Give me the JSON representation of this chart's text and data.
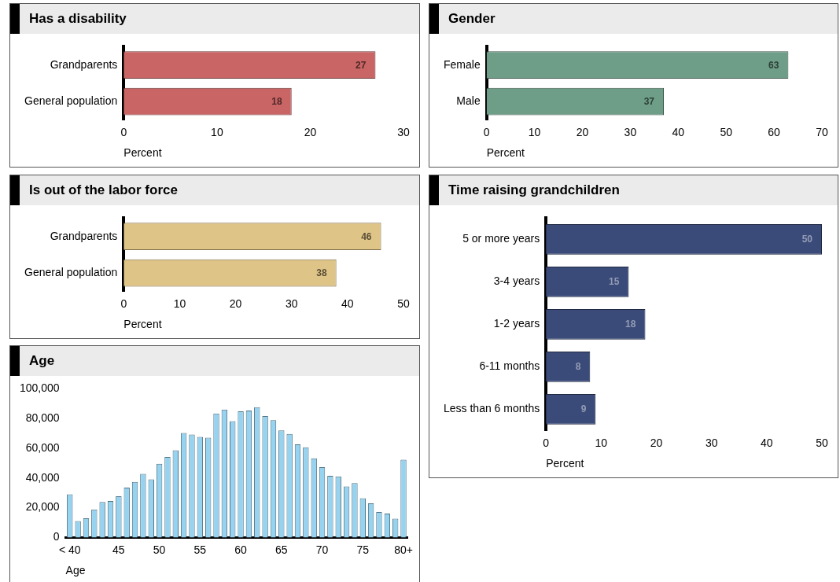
{
  "chart_data": [
    {
      "type": "bar",
      "title": "Has a disability",
      "orientation": "horizontal",
      "categories": [
        "Grandparents",
        "General population"
      ],
      "values": [
        27,
        18
      ],
      "color": "#c96565",
      "xlim": [
        0,
        30
      ],
      "xticks": [
        0,
        10,
        20,
        30
      ],
      "xlabel": "Percent",
      "data_labels": true
    },
    {
      "type": "bar",
      "title": "Gender",
      "orientation": "horizontal",
      "categories": [
        "Female",
        "Male"
      ],
      "values": [
        63,
        37
      ],
      "color": "#6f9e88",
      "xlim": [
        0,
        70
      ],
      "xticks": [
        0,
        10,
        20,
        30,
        40,
        50,
        60,
        70
      ],
      "xlabel": "Percent",
      "data_labels": true
    },
    {
      "type": "bar",
      "title": "Is out of the labor force",
      "orientation": "horizontal",
      "categories": [
        "Grandparents",
        "General population"
      ],
      "values": [
        46,
        38
      ],
      "color": "#dfc487",
      "xlim": [
        0,
        50
      ],
      "xticks": [
        0,
        10,
        20,
        30,
        40,
        50
      ],
      "xlabel": "Percent",
      "data_labels": true
    },
    {
      "type": "bar",
      "title": "Time raising grandchildren",
      "orientation": "horizontal",
      "categories": [
        "5 or more years",
        "3-4 years",
        "1-2 years",
        "6-11 months",
        "Less than 6 months"
      ],
      "values": [
        50,
        15,
        18,
        8,
        9
      ],
      "color": "#3b4b79",
      "xlim": [
        0,
        50
      ],
      "xticks": [
        0,
        10,
        20,
        30,
        40,
        50
      ],
      "xlabel": "Percent",
      "data_labels": true
    },
    {
      "type": "bar",
      "title": "Age",
      "categories": [
        "< 40",
        null,
        null,
        null,
        null,
        null,
        "45",
        null,
        null,
        null,
        null,
        "50",
        null,
        null,
        null,
        null,
        "55",
        null,
        null,
        null,
        null,
        "60",
        null,
        null,
        null,
        null,
        "65",
        null,
        null,
        null,
        null,
        "70",
        null,
        null,
        null,
        null,
        "75",
        null,
        null,
        null,
        null,
        "80+"
      ],
      "values": [
        29000,
        11000,
        12900,
        18900,
        23900,
        24500,
        27700,
        33600,
        37400,
        42800,
        39100,
        49500,
        54200,
        58700,
        70300,
        69300,
        67700,
        67100,
        83400,
        86000,
        78300,
        84900,
        85400,
        87700,
        81700,
        78900,
        72000,
        69700,
        62600,
        60700,
        53300,
        47300,
        41500,
        41100,
        34400,
        36600,
        26400,
        23000,
        17200,
        16100,
        12700,
        52300
      ],
      "color": "#96d3f0",
      "ylim": [
        0,
        100000
      ],
      "yticks": [
        {
          "value": 0,
          "label": "0"
        },
        {
          "value": 20000,
          "label": "20,000"
        },
        {
          "value": 40000,
          "label": "40,000"
        },
        {
          "value": 60000,
          "label": "60,000"
        },
        {
          "value": 80000,
          "label": "80,000"
        },
        {
          "value": 100000,
          "label": "100,000"
        }
      ],
      "xlabel": "Age"
    }
  ]
}
